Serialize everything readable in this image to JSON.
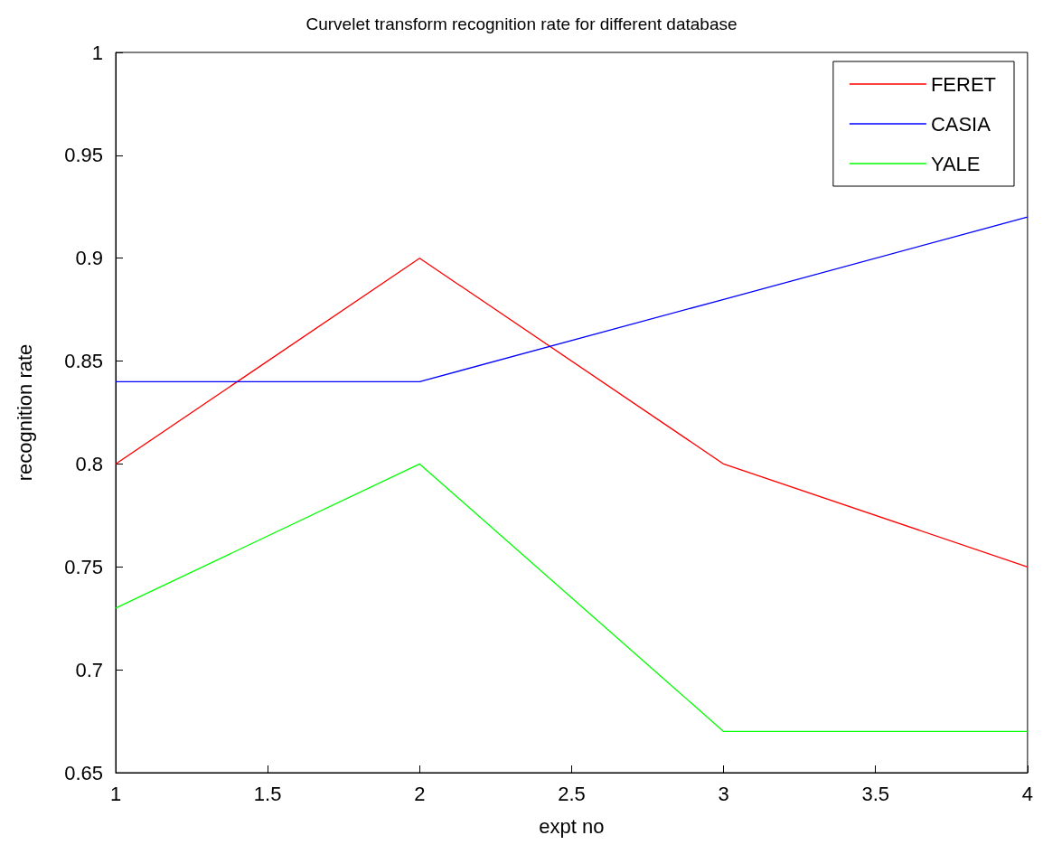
{
  "chart_data": {
    "type": "line",
    "title": "Curvelet transform recognition rate for different database",
    "xlabel": "expt no",
    "ylabel": "recognition rate",
    "x": [
      1,
      2,
      3,
      4
    ],
    "series": [
      {
        "name": "FERET",
        "color": "#ff0000",
        "values": [
          0.8,
          0.9,
          0.8,
          0.75
        ]
      },
      {
        "name": "CASIA",
        "color": "#0000ff",
        "values": [
          0.84,
          0.84,
          0.88,
          0.92
        ]
      },
      {
        "name": "YALE",
        "color": "#00ff00",
        "values": [
          0.73,
          0.8,
          0.67,
          0.67
        ]
      }
    ],
    "xlim": [
      1,
      4
    ],
    "xticks": [
      1,
      1.5,
      2,
      2.5,
      3,
      3.5,
      4
    ],
    "ylim": [
      0.65,
      1
    ],
    "yticks": [
      0.65,
      0.7,
      0.75,
      0.8,
      0.85,
      0.9,
      0.95,
      1
    ],
    "legend": "top right"
  }
}
